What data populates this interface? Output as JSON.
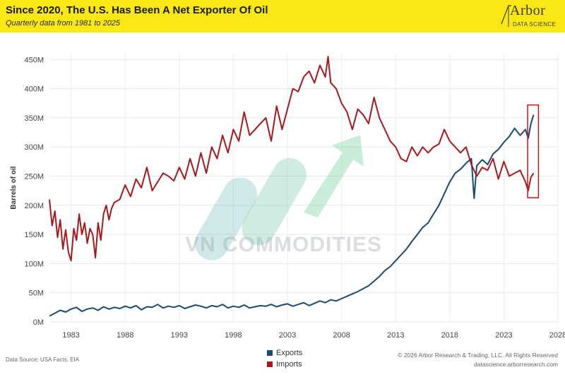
{
  "header": {
    "title": "Since 2020, The U.S. Has Been A Net Exporter Of Oil",
    "subtitle": "Quarterly data from 1981 to 2025"
  },
  "logo": {
    "word": "Arbor",
    "sub": "DATA SCIENCE"
  },
  "watermark": {
    "text": "VN COMMODITIES"
  },
  "footer": {
    "source": "Data Source: USA Facts, EIA",
    "copyright_line1": "© 2026 Arbor Research & Trading, LLC. All Rights Reserved",
    "copyright_line2": "datascience.arborresearch.com"
  },
  "colors": {
    "exports": "#1b4a6e",
    "imports": "#a8191c",
    "header_bg": "#f9e814"
  },
  "chart_data": {
    "type": "line",
    "ylabel": "Barrels of oil",
    "xlabel": "",
    "xlim": [
      1981,
      2028
    ],
    "ylim": [
      0,
      460
    ],
    "x_ticks": [
      1983,
      1988,
      1993,
      1998,
      2003,
      2008,
      2013,
      2018,
      2023,
      2028
    ],
    "y_ticks": [
      0,
      50,
      100,
      150,
      200,
      250,
      300,
      350,
      400,
      450
    ],
    "y_tick_labels": [
      "0M",
      "50M",
      "100M",
      "150M",
      "200M",
      "250M",
      "300M",
      "350M",
      "400M",
      "450M"
    ],
    "grid": true,
    "legend_position": "bottom-center",
    "highlight_box": {
      "x_range": [
        2025.2,
        2026.2
      ],
      "y_range": [
        213,
        372
      ]
    },
    "series": [
      {
        "name": "Exports",
        "color": "#1b4a6e",
        "x": [
          1981.0,
          1981.5,
          1982.0,
          1982.5,
          1983.0,
          1983.5,
          1984.0,
          1984.5,
          1985.0,
          1985.5,
          1986.0,
          1986.5,
          1987.0,
          1987.5,
          1988.0,
          1988.5,
          1989.0,
          1989.5,
          1990.0,
          1990.5,
          1991.0,
          1991.5,
          1992.0,
          1992.5,
          1993.0,
          1993.5,
          1994.0,
          1994.5,
          1995.0,
          1995.5,
          1996.0,
          1996.5,
          1997.0,
          1997.5,
          1998.0,
          1998.5,
          1999.0,
          1999.5,
          2000.0,
          2000.5,
          2001.0,
          2001.5,
          2002.0,
          2002.5,
          2003.0,
          2003.5,
          2004.0,
          2004.5,
          2005.0,
          2005.5,
          2006.0,
          2006.5,
          2007.0,
          2007.5,
          2008.0,
          2008.5,
          2009.0,
          2009.5,
          2010.0,
          2010.5,
          2011.0,
          2011.5,
          2012.0,
          2012.5,
          2013.0,
          2013.5,
          2014.0,
          2014.5,
          2015.0,
          2015.5,
          2016.0,
          2016.5,
          2017.0,
          2017.5,
          2018.0,
          2018.5,
          2019.0,
          2019.5,
          2020.0,
          2020.25,
          2020.5,
          2021.0,
          2021.5,
          2022.0,
          2022.5,
          2023.0,
          2023.5,
          2024.0,
          2024.5,
          2025.0,
          2025.25,
          2025.5,
          2025.75
        ],
        "values": [
          10,
          15,
          20,
          17,
          22,
          25,
          18,
          22,
          24,
          20,
          26,
          22,
          25,
          23,
          27,
          24,
          28,
          21,
          26,
          25,
          30,
          24,
          27,
          25,
          28,
          23,
          26,
          29,
          27,
          24,
          28,
          26,
          30,
          24,
          27,
          25,
          29,
          24,
          26,
          28,
          27,
          30,
          26,
          29,
          31,
          27,
          30,
          33,
          28,
          32,
          36,
          33,
          38,
          36,
          40,
          44,
          48,
          52,
          57,
          62,
          70,
          78,
          88,
          95,
          105,
          115,
          125,
          138,
          150,
          162,
          170,
          185,
          200,
          220,
          240,
          255,
          262,
          272,
          280,
          212,
          268,
          278,
          270,
          288,
          296,
          308,
          318,
          332,
          320,
          330,
          315,
          340,
          355
        ]
      },
      {
        "name": "Imports",
        "color": "#a8191c",
        "x": [
          1981.0,
          1981.25,
          1981.5,
          1981.75,
          1982.0,
          1982.25,
          1982.5,
          1982.75,
          1983.0,
          1983.25,
          1983.5,
          1983.75,
          1984.0,
          1984.25,
          1984.5,
          1984.75,
          1985.0,
          1985.25,
          1985.5,
          1985.75,
          1986.0,
          1986.25,
          1986.5,
          1986.75,
          1987.0,
          1987.5,
          1988.0,
          1988.5,
          1989.0,
          1989.5,
          1990.0,
          1990.5,
          1991.0,
          1991.5,
          1992.0,
          1992.5,
          1993.0,
          1993.5,
          1994.0,
          1994.5,
          1995.0,
          1995.5,
          1996.0,
          1996.5,
          1997.0,
          1997.5,
          1998.0,
          1998.5,
          1999.0,
          1999.5,
          2000.0,
          2000.5,
          2001.0,
          2001.5,
          2002.0,
          2002.5,
          2003.0,
          2003.5,
          2004.0,
          2004.5,
          2005.0,
          2005.5,
          2006.0,
          2006.5,
          2006.75,
          2007.0,
          2007.5,
          2008.0,
          2008.5,
          2009.0,
          2009.5,
          2010.0,
          2010.5,
          2011.0,
          2011.5,
          2012.0,
          2012.5,
          2013.0,
          2013.5,
          2014.0,
          2014.5,
          2015.0,
          2015.5,
          2016.0,
          2016.5,
          2017.0,
          2017.5,
          2018.0,
          2018.5,
          2019.0,
          2019.5,
          2020.0,
          2020.5,
          2021.0,
          2021.5,
          2022.0,
          2022.5,
          2023.0,
          2023.5,
          2024.0,
          2024.5,
          2025.0,
          2025.25,
          2025.5,
          2025.75
        ],
        "values": [
          210,
          165,
          190,
          145,
          175,
          125,
          158,
          120,
          105,
          160,
          140,
          185,
          150,
          170,
          135,
          160,
          150,
          110,
          170,
          140,
          185,
          200,
          175,
          195,
          205,
          210,
          235,
          215,
          245,
          230,
          265,
          225,
          240,
          255,
          250,
          242,
          265,
          245,
          280,
          250,
          290,
          255,
          300,
          280,
          320,
          290,
          330,
          310,
          360,
          320,
          330,
          340,
          350,
          310,
          370,
          330,
          365,
          400,
          395,
          420,
          430,
          410,
          440,
          420,
          455,
          410,
          400,
          375,
          360,
          330,
          365,
          355,
          340,
          385,
          350,
          330,
          310,
          300,
          280,
          275,
          300,
          285,
          300,
          290,
          300,
          305,
          330,
          310,
          300,
          290,
          300,
          270,
          250,
          265,
          260,
          280,
          245,
          275,
          250,
          255,
          260,
          240,
          225,
          248,
          255
        ]
      }
    ]
  }
}
